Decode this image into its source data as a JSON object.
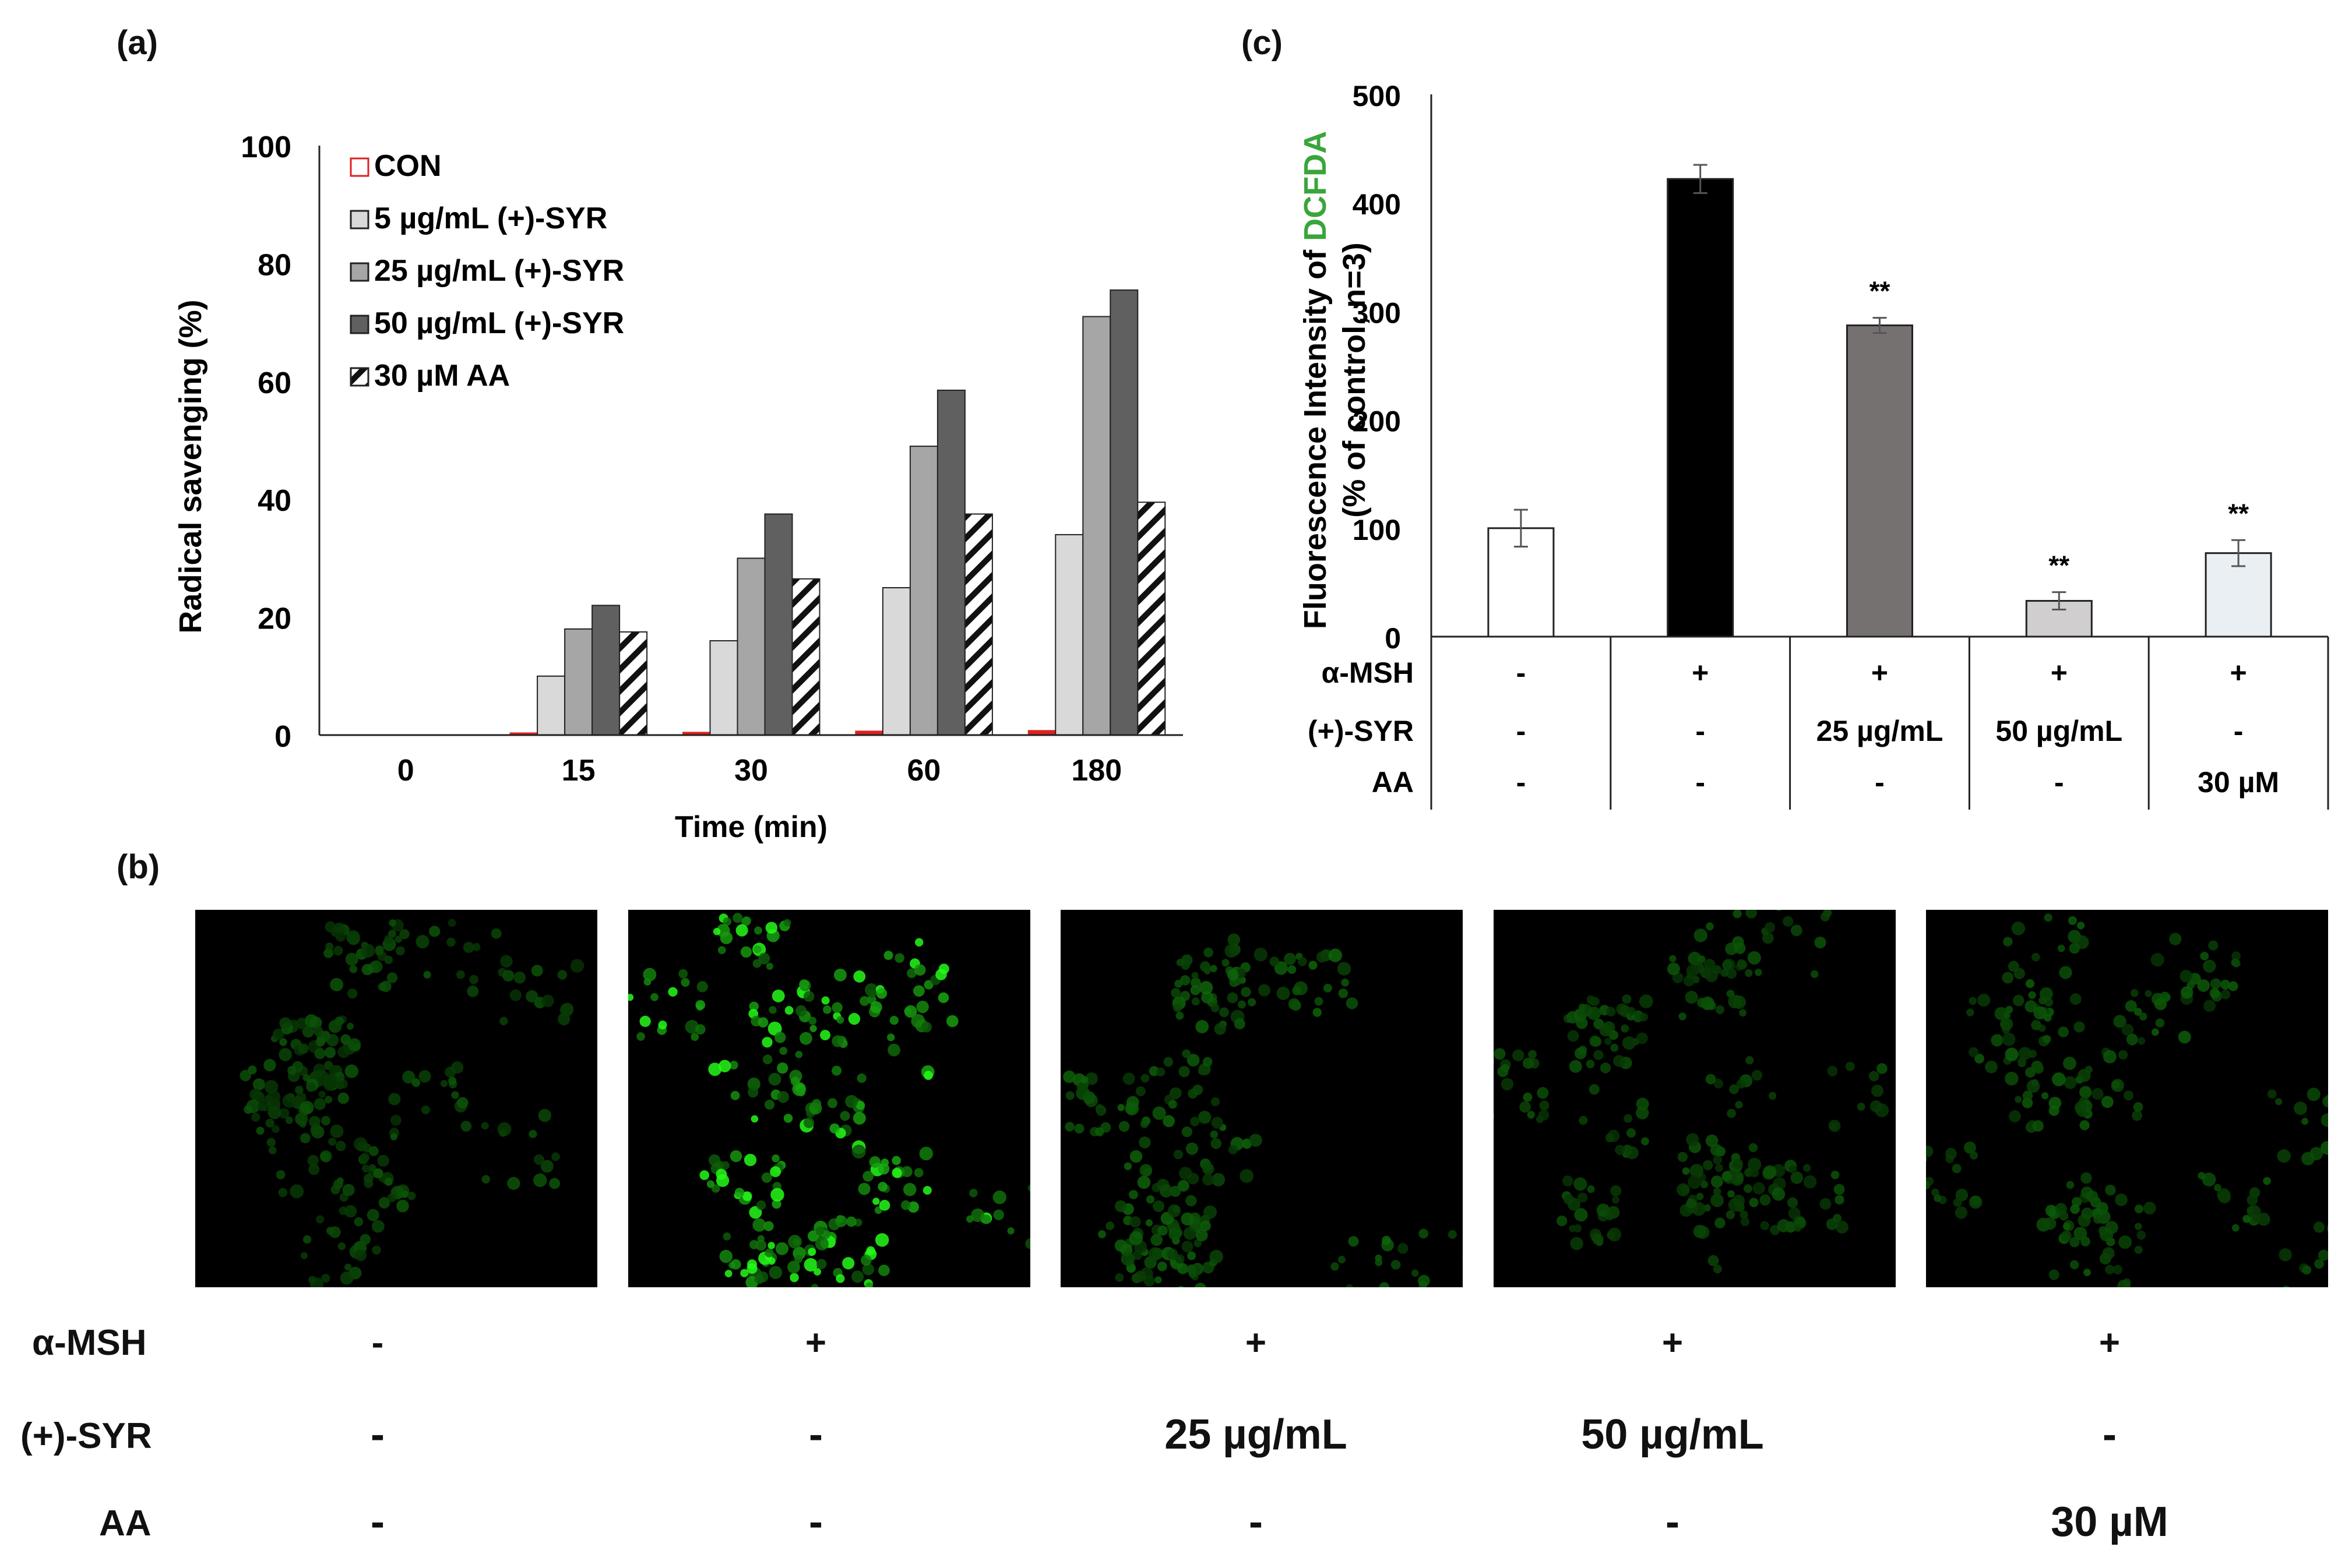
{
  "panels": {
    "a": "(a)",
    "b": "(b)",
    "c": "(c)"
  },
  "chart_data": [
    {
      "type": "bar",
      "panel": "(a)",
      "ylabel": "Radical savenging   (%)",
      "xlabel": "Time (min)",
      "ylim": [
        0,
        100
      ],
      "yticks": [
        0,
        20,
        40,
        60,
        80,
        100
      ],
      "categories": [
        "0",
        "15",
        "30",
        "60",
        "180"
      ],
      "legend_position": "top-left",
      "series": [
        {
          "name": "CON",
          "values": [
            0,
            0.4,
            0.5,
            0.7,
            0.8
          ],
          "color": "#e02020",
          "fill": "hollow"
        },
        {
          "name": "5 µg/mL (+)-SYR",
          "values": [
            0,
            10,
            16,
            25,
            34
          ],
          "color": "#d9d9d9"
        },
        {
          "name": "25 µg/mL (+)-SYR",
          "values": [
            0,
            18,
            30,
            49,
            71
          ],
          "color": "#a6a6a6"
        },
        {
          "name": "50 µg/mL (+)-SYR",
          "values": [
            0,
            22,
            37.5,
            58.5,
            75.5
          ],
          "color": "#606060"
        },
        {
          "name": "30 µM AA",
          "values": [
            0,
            17.5,
            26.5,
            37.5,
            39.5
          ],
          "color": "#ffffff",
          "fill": "hatched"
        }
      ]
    },
    {
      "type": "bar",
      "panel": "(c)",
      "ylabel_prefix": "Fluorescence Intensity of ",
      "ylabel_highlight": "DCFDA",
      "ylabel_highlight_color": "#3aa53a",
      "ylabel_line2": "(% of control, n=3)",
      "ylim": [
        0,
        500
      ],
      "yticks": [
        0,
        100,
        200,
        300,
        400,
        500
      ],
      "values": [
        100,
        422,
        287,
        33,
        77
      ],
      "errors": [
        17,
        13,
        7,
        8,
        12
      ],
      "colors": [
        "#ffffff",
        "#000000",
        "#767171",
        "#d0cece",
        "#eaeff4"
      ],
      "annotations": [
        "",
        "",
        "**",
        "**",
        "**"
      ],
      "table": {
        "rows": [
          {
            "label": "α-MSH",
            "cells": [
              "-",
              "+",
              "+",
              "+",
              "+"
            ]
          },
          {
            "label": "(+)-SYR",
            "cells": [
              "-",
              "-",
              "25 µg/mL",
              "50 µg/mL",
              "-"
            ]
          },
          {
            "label": "AA",
            "cells": [
              "-",
              "-",
              "-",
              "-",
              "30 µM"
            ]
          }
        ]
      }
    }
  ],
  "panel_b": {
    "images": [
      {
        "intensity": 0.45,
        "seed": 11,
        "bright": 0
      },
      {
        "intensity": 1.0,
        "seed": 23,
        "bright": 0.25
      },
      {
        "intensity": 0.55,
        "seed": 37,
        "bright": 0
      },
      {
        "intensity": 0.45,
        "seed": 53,
        "bright": 0
      },
      {
        "intensity": 0.5,
        "seed": 71,
        "bright": 0
      }
    ],
    "rows": [
      {
        "label": "α-MSH",
        "cells": [
          "-",
          "+",
          "+",
          "+",
          "+"
        ]
      },
      {
        "label": "(+)-SYR",
        "cells": [
          "-",
          "-",
          "25 µg/mL",
          "50 µg/mL",
          "-"
        ]
      },
      {
        "label": "AA",
        "cells": [
          "-",
          "-",
          "-",
          "-",
          "30 µM"
        ]
      }
    ]
  }
}
